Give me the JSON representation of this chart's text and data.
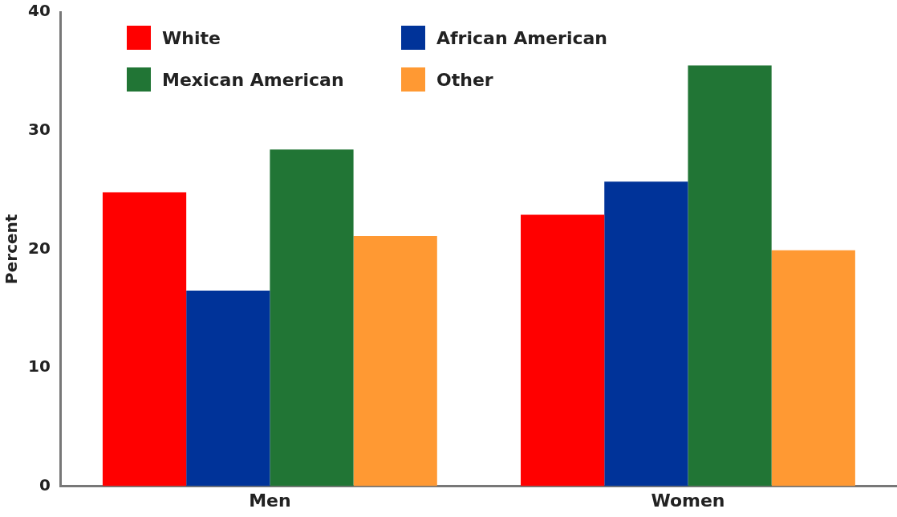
{
  "chart_data": {
    "type": "bar",
    "ylabel": "Percent",
    "categories": [
      "Men",
      "Women"
    ],
    "series": [
      {
        "name": "White",
        "color": "#ff0000",
        "values": [
          24.8,
          22.9
        ]
      },
      {
        "name": "African American",
        "color": "#003399",
        "values": [
          16.5,
          25.7
        ]
      },
      {
        "name": "Mexican American",
        "color": "#217535",
        "values": [
          28.4,
          35.5
        ]
      },
      {
        "name": "Other",
        "color": "#ff9933",
        "values": [
          21.1,
          19.9
        ]
      }
    ],
    "ylim": [
      0,
      40
    ],
    "yticks": [
      0,
      10,
      20,
      30,
      40
    ],
    "grid": false,
    "legend": "top left"
  }
}
